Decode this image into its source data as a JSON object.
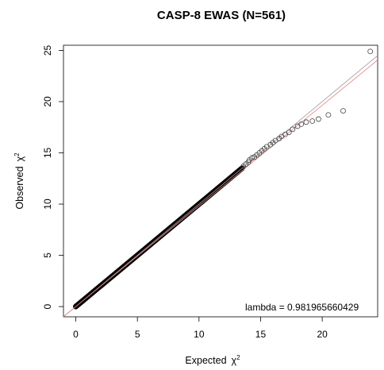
{
  "chart_data": {
    "type": "scatter",
    "title": "CASP-8 EWAS (N=561)",
    "xlabel": "Expected",
    "ylabel": "Observed",
    "axis_symbol": "χ",
    "axis_symbol_power": "2",
    "xlim": [
      -1,
      24.5
    ],
    "ylim": [
      -1,
      25.5
    ],
    "x_ticks": [
      0,
      5,
      10,
      15,
      20
    ],
    "y_ticks": [
      0,
      5,
      10,
      15,
      20,
      25
    ],
    "annotation": "lambda =  0.981965660429",
    "grid": false,
    "reference_line": {
      "slope": 1,
      "color": "#999999"
    },
    "fit_line": {
      "slope": 0.982,
      "color": "#e08080"
    },
    "dense_band": {
      "x_start": 0,
      "x_end": 13.5,
      "color": "#000000",
      "accent_color": "#8b1a1a"
    },
    "points": [
      [
        13.6,
        13.7
      ],
      [
        13.8,
        13.9
      ],
      [
        14.0,
        14.1
      ],
      [
        14.1,
        14.3
      ],
      [
        14.3,
        14.5
      ],
      [
        14.5,
        14.6
      ],
      [
        14.7,
        14.8
      ],
      [
        14.9,
        15.0
      ],
      [
        15.1,
        15.2
      ],
      [
        15.3,
        15.4
      ],
      [
        15.5,
        15.6
      ],
      [
        15.8,
        15.8
      ],
      [
        16.0,
        16.0
      ],
      [
        16.2,
        16.2
      ],
      [
        16.5,
        16.4
      ],
      [
        16.7,
        16.6
      ],
      [
        17.0,
        16.8
      ],
      [
        17.3,
        17.0
      ],
      [
        17.6,
        17.3
      ],
      [
        18.0,
        17.6
      ],
      [
        18.3,
        17.8
      ],
      [
        18.7,
        18.0
      ],
      [
        19.2,
        18.1
      ],
      [
        19.7,
        18.3
      ],
      [
        20.5,
        18.7
      ],
      [
        21.7,
        19.1
      ],
      [
        23.9,
        24.9
      ]
    ]
  }
}
